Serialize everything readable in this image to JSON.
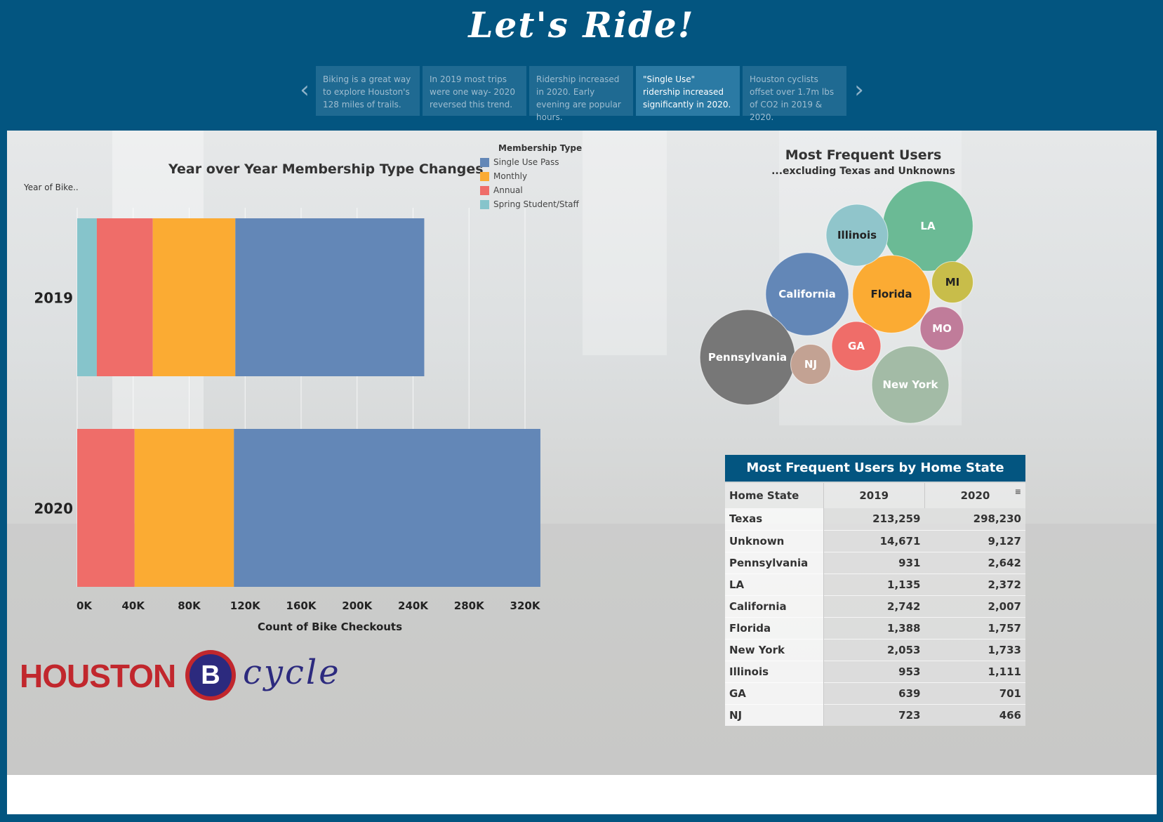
{
  "header": {
    "title": "Let's Ride!",
    "story_points": [
      "Biking is a great way to explore Houston's 128 miles of trails.",
      "In 2019 most trips were one way- 2020 reversed this trend.",
      "Ridership increased in 2020. Early evening are popular hours.",
      "\"Single Use\" ridership increased significantly in 2020.",
      "Houston cyclists offset over 1.7m lbs of CO2 in 2019 & 2020."
    ],
    "active_story_point": 3,
    "prev_arrow": "‹",
    "next_arrow": "›"
  },
  "bar_section": {
    "row_header": "Year of Bike.."
  },
  "colors": {
    "frame": "#035580",
    "single_use": "#6387b7",
    "monthly": "#fbab33",
    "annual": "#ef6d69",
    "spring_student": "#86c4cb"
  },
  "chart_data": [
    {
      "type": "bar",
      "orientation": "horizontal",
      "stacked": true,
      "title": "Year over Year Membership Type Changes",
      "xlabel": "Count of Bike Checkouts",
      "ylabel": "Year of Bike..",
      "categories": [
        "2019",
        "2020"
      ],
      "xlim": [
        0,
        330000
      ],
      "x_ticks": [
        "0K",
        "40K",
        "80K",
        "120K",
        "160K",
        "200K",
        "240K",
        "280K",
        "320K"
      ],
      "x_tick_values": [
        0,
        40000,
        80000,
        120000,
        160000,
        200000,
        240000,
        280000,
        320000
      ],
      "grid": true,
      "legend_title": "Membership Type",
      "legend_position": "top-right",
      "series": [
        {
          "name": "Spring Student/Staff",
          "color": "#86c4cb",
          "values": [
            14000,
            0
          ]
        },
        {
          "name": "Annual",
          "color": "#ef6d69",
          "values": [
            40000,
            41000
          ]
        },
        {
          "name": "Monthly",
          "color": "#fbab33",
          "values": [
            59000,
            71000
          ]
        },
        {
          "name": "Single Use Pass",
          "color": "#6387b7",
          "values": [
            135000,
            219000
          ]
        }
      ],
      "legend_order": [
        "Single Use Pass",
        "Monthly",
        "Annual",
        "Spring Student/Staff"
      ]
    },
    {
      "type": "bubble",
      "title": "Most Frequent Users",
      "subtitle": "...excluding Texas and Unknowns",
      "bubbles": [
        {
          "label": "California",
          "value": 2007,
          "color": "#6387b7"
        },
        {
          "label": "Pennsylvania",
          "value": 2642,
          "color": "#777777"
        },
        {
          "label": "LA",
          "value": 2372,
          "color": "#6bba95"
        },
        {
          "label": "New York",
          "value": 1733,
          "color": "#a3bba6"
        },
        {
          "label": "Florida",
          "value": 1757,
          "color": "#fbab33"
        },
        {
          "label": "Illinois",
          "value": 1111,
          "color": "#90c5cb"
        },
        {
          "label": "MO",
          "value": 550,
          "color": "#c07c9a"
        },
        {
          "label": "MI",
          "value": 500,
          "color": "#c8bd4a"
        },
        {
          "label": "GA",
          "value": 701,
          "color": "#ef6d69"
        },
        {
          "label": "NJ",
          "value": 466,
          "color": "#c3a293"
        }
      ]
    },
    {
      "type": "table",
      "title": "Most Frequent Users by Home State",
      "columns": [
        "Home State",
        "2019",
        "2020"
      ],
      "rows": [
        [
          "Texas",
          "213,259",
          "298,230"
        ],
        [
          "Unknown",
          "14,671",
          "9,127"
        ],
        [
          "Pennsylvania",
          "931",
          "2,642"
        ],
        [
          "LA",
          "1,135",
          "2,372"
        ],
        [
          "California",
          "2,742",
          "2,007"
        ],
        [
          "Florida",
          "1,388",
          "1,757"
        ],
        [
          "New York",
          "2,053",
          "1,733"
        ],
        [
          "Illinois",
          "953",
          "1,111"
        ],
        [
          "GA",
          "639",
          "701"
        ],
        [
          "NJ",
          "723",
          "466"
        ]
      ]
    }
  ],
  "logo": {
    "word": "HOUSTON",
    "badge": "B",
    "script": "cycle"
  }
}
